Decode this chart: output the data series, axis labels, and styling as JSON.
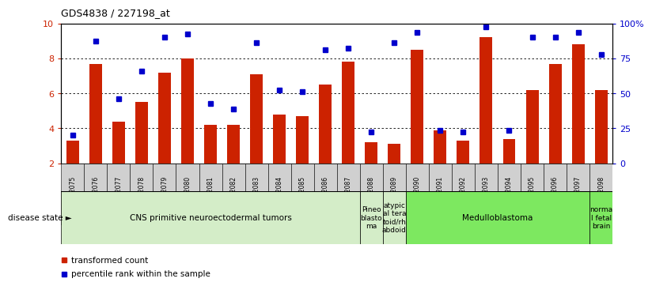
{
  "title": "GDS4838 / 227198_at",
  "samples": [
    "GSM482075",
    "GSM482076",
    "GSM482077",
    "GSM482078",
    "GSM482079",
    "GSM482080",
    "GSM482081",
    "GSM482082",
    "GSM482083",
    "GSM482084",
    "GSM482085",
    "GSM482086",
    "GSM482087",
    "GSM482088",
    "GSM482089",
    "GSM482090",
    "GSM482091",
    "GSM482092",
    "GSM482093",
    "GSM482094",
    "GSM482095",
    "GSM482096",
    "GSM482097",
    "GSM482098"
  ],
  "bar_values": [
    3.3,
    7.7,
    4.4,
    5.5,
    7.2,
    8.0,
    4.2,
    4.2,
    7.1,
    4.8,
    4.7,
    6.5,
    7.8,
    3.2,
    3.1,
    8.5,
    3.9,
    3.3,
    9.2,
    3.4,
    6.2,
    7.7,
    8.8,
    6.2
  ],
  "dot_values": [
    3.6,
    9.0,
    5.7,
    7.25,
    9.2,
    9.4,
    5.4,
    5.1,
    8.9,
    6.2,
    6.1,
    8.5,
    8.6,
    3.8,
    8.9,
    9.5,
    3.9,
    3.8,
    9.8,
    3.9,
    9.2,
    9.2,
    9.5,
    8.2
  ],
  "ylim": [
    2,
    10
  ],
  "yticks": [
    2,
    4,
    6,
    8,
    10
  ],
  "ytick_labels_left": [
    "2",
    "4",
    "6",
    "8",
    "10"
  ],
  "ytick_labels_right": [
    "0",
    "25",
    "50",
    "75",
    "100%"
  ],
  "bar_color": "#cc2200",
  "dot_color": "#0000cc",
  "bar_bottom": 2,
  "group_boundaries": [
    {
      "label": "CNS primitive neuroectodermal tumors",
      "start": 0,
      "end": 13,
      "color": "#d4edc8"
    },
    {
      "label": "Pineo\nblasto\nma",
      "start": 13,
      "end": 14,
      "color": "#d4edc8"
    },
    {
      "label": "atypic\nal tera\ntoid/rh\nabdoid",
      "start": 14,
      "end": 15,
      "color": "#d4edc8"
    },
    {
      "label": "Medulloblastoma",
      "start": 15,
      "end": 23,
      "color": "#7de860"
    },
    {
      "label": "norma\nl fetal\nbrain",
      "start": 23,
      "end": 24,
      "color": "#7de860"
    }
  ],
  "tick_bg_color": "#d0d0d0",
  "plot_bg": "#ffffff",
  "fig_bg": "#ffffff"
}
